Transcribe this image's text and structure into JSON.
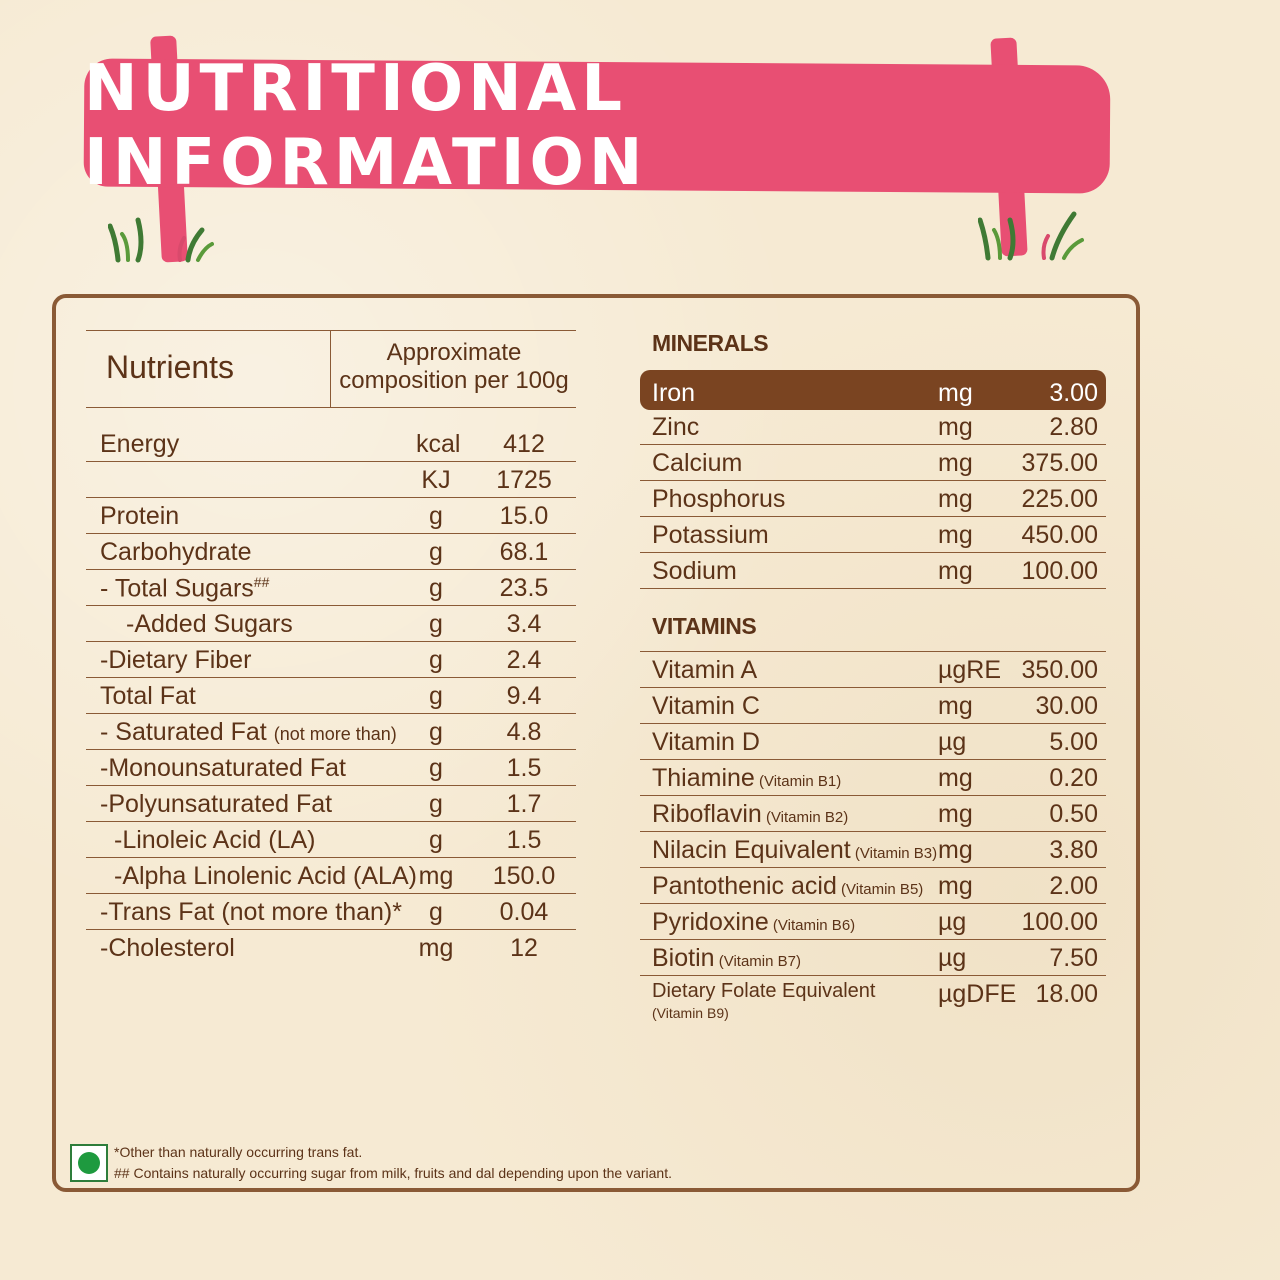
{
  "banner": {
    "title": "NUTRITIONAL INFORMATION"
  },
  "nutrients_table": {
    "header_left": "Nutrients",
    "header_right_line1": "Approximate",
    "header_right_line2": "composition per 100g",
    "rows": [
      {
        "name": "Energy",
        "unit": "kcal",
        "value": "412"
      },
      {
        "name": "",
        "unit": "KJ",
        "value": "1725"
      },
      {
        "name": "Protein",
        "unit": "g",
        "value": "15.0"
      },
      {
        "name": "Carbohydrate",
        "unit": "g",
        "value": "68.1"
      },
      {
        "name": "- Total Sugars",
        "sup": "##",
        "unit": "g",
        "value": "23.5"
      },
      {
        "name": "-Added Sugars",
        "unit": "g",
        "value": "3.4",
        "indent": 1
      },
      {
        "name": "-Dietary Fiber",
        "unit": "g",
        "value": "2.4"
      },
      {
        "name": "Total Fat",
        "unit": "g",
        "value": "9.4"
      },
      {
        "name": "- Saturated Fat ",
        "small": "(not more than)",
        "unit": "g",
        "value": "4.8"
      },
      {
        "name": "-Monounsaturated Fat",
        "unit": "g",
        "value": "1.5"
      },
      {
        "name": "-Polyunsaturated Fat",
        "unit": "g",
        "value": "1.7"
      },
      {
        "name": "-Linoleic Acid (LA)",
        "unit": "g",
        "value": "1.5",
        "indent": 2
      },
      {
        "name": "-Alpha Linolenic Acid (ALA)",
        "unit": "mg",
        "value": "150.0",
        "indent": 2
      },
      {
        "name": "-Trans Fat (not more than)*",
        "unit": "g",
        "value": "0.04"
      },
      {
        "name": "-Cholesterol",
        "unit": "mg",
        "value": "12"
      }
    ]
  },
  "minerals": {
    "title": "MINERALS",
    "rows": [
      {
        "name": "Iron",
        "unit": "mg",
        "value": "3.00"
      },
      {
        "name": "Zinc",
        "unit": "mg",
        "value": "2.80"
      },
      {
        "name": "Calcium",
        "unit": "mg",
        "value": "375.00"
      },
      {
        "name": "Phosphorus",
        "unit": "mg",
        "value": "225.00"
      },
      {
        "name": "Potassium",
        "unit": "mg",
        "value": "450.00"
      },
      {
        "name": "Sodium",
        "unit": "mg",
        "value": "100.00"
      }
    ]
  },
  "vitamins": {
    "title": "VITAMINS",
    "rows": [
      {
        "name": "Vitamin A",
        "unit": "µgRE",
        "value": "350.00"
      },
      {
        "name": "Vitamin C",
        "unit": "mg",
        "value": "30.00"
      },
      {
        "name": "Vitamin D",
        "unit": "µg",
        "value": "5.00"
      },
      {
        "name": "Thiamine",
        "small": " (Vitamin B1)",
        "unit": "mg",
        "value": "0.20"
      },
      {
        "name": "Riboflavin",
        "small": " (Vitamin B2)",
        "unit": "mg",
        "value": "0.50"
      },
      {
        "name": "Nilacin Equivalent",
        "small": " (Vitamin B3)",
        "unit": "mg",
        "value": "3.80"
      },
      {
        "name": "Pantothenic acid",
        "small": " (Vitamin B5)",
        "unit": "mg",
        "value": "2.00"
      },
      {
        "name": "Pyridoxine",
        "small": " (Vitamin B6)",
        "unit": "µg",
        "value": "100.00"
      },
      {
        "name": "Biotin",
        "small": " (Vitamin B7)",
        "unit": "µg",
        "value": "7.50"
      },
      {
        "name": "Dietary Folate Equivalent",
        "small": "(Vitamin B9)",
        "unit": "µgDFE",
        "value": "18.00"
      }
    ]
  },
  "footer": {
    "note1": "*Other than naturally occurring trans fat.",
    "note2": "## Contains naturally occurring sugar from milk, fruits and dal depending upon the variant."
  },
  "colors": {
    "banner": "#e84f73",
    "text": "#5c3318",
    "highlight": "#7a4421",
    "veg": "#1e9a3f"
  },
  "icons": [
    "grass-icon",
    "veg-mark-icon"
  ]
}
